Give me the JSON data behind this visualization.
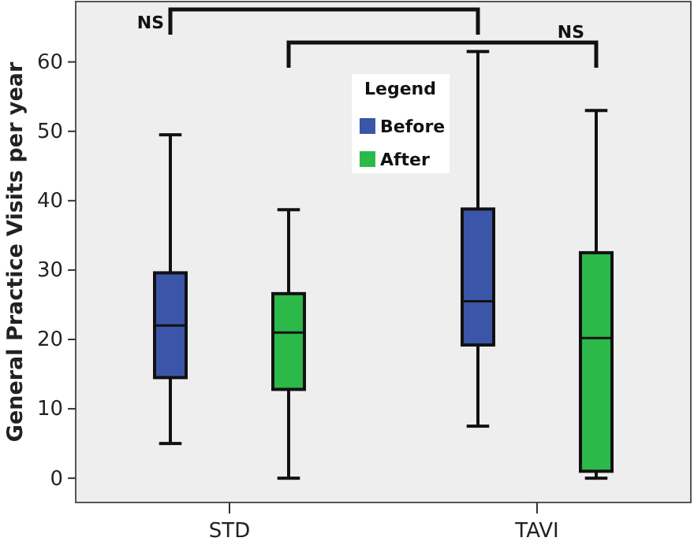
{
  "chart_data": {
    "type": "box",
    "ylabel": "General Practice Visits per year",
    "categories": [
      "STD",
      "TAVI"
    ],
    "series": [
      {
        "name": "Before",
        "color": "#3b55a8",
        "boxes": [
          {
            "low": 5,
            "q1": 14.5,
            "median": 22,
            "q3": 29.6,
            "high": 49.5
          },
          {
            "low": 7.5,
            "q1": 19.2,
            "median": 25.5,
            "q3": 38.8,
            "high": 61.5
          }
        ]
      },
      {
        "name": "After",
        "color": "#2db84a",
        "boxes": [
          {
            "low": 0,
            "q1": 12.8,
            "median": 21,
            "q3": 26.6,
            "high": 38.7
          },
          {
            "low": 0,
            "q1": 1,
            "median": 20.2,
            "q3": 32.5,
            "high": 53
          }
        ]
      }
    ],
    "ylim": [
      -3.5,
      68.7
    ],
    "yticks": [
      0,
      10,
      20,
      30,
      40,
      50,
      60
    ],
    "grid": false,
    "legend": "top",
    "legend_title": "Legend",
    "annotations": [
      "NS",
      "NS"
    ]
  }
}
